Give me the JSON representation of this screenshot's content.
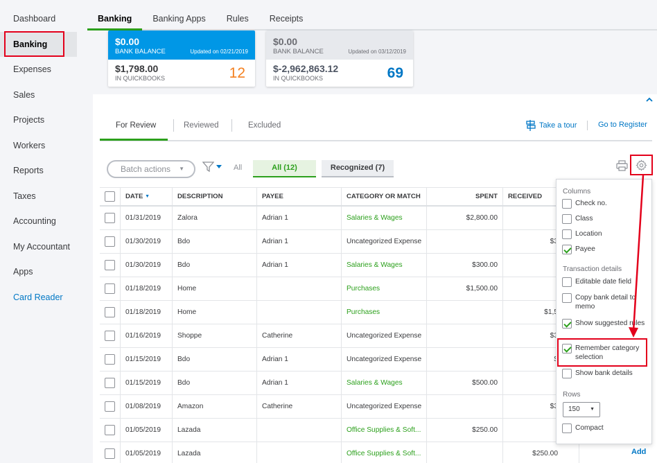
{
  "sidebar": {
    "items": [
      {
        "label": "Dashboard"
      },
      {
        "label": "Banking"
      },
      {
        "label": "Expenses"
      },
      {
        "label": "Sales"
      },
      {
        "label": "Projects"
      },
      {
        "label": "Workers"
      },
      {
        "label": "Reports"
      },
      {
        "label": "Taxes"
      },
      {
        "label": "Accounting"
      },
      {
        "label": "My Accountant"
      },
      {
        "label": "Apps"
      },
      {
        "label": "Card Reader"
      }
    ]
  },
  "top_tabs": [
    {
      "label": "Banking"
    },
    {
      "label": "Banking Apps"
    },
    {
      "label": "Rules"
    },
    {
      "label": "Receipts"
    }
  ],
  "cards": [
    {
      "bank_amount": "$0.00",
      "bank_label": "BANK BALANCE",
      "updated": "Updated on 02/21/2019",
      "qb_amount": "$1,798.00",
      "qb_label": "IN QUICKBOOKS",
      "count": "12"
    },
    {
      "bank_amount": "$0.00",
      "bank_label": "BANK BALANCE",
      "updated": "Updated on 03/12/2019",
      "qb_amount": "$-2,962,863.12",
      "qb_label": "IN QUICKBOOKS",
      "count": "69"
    }
  ],
  "review_tabs": {
    "for_review": "For Review",
    "reviewed": "Reviewed",
    "excluded": "Excluded"
  },
  "links": {
    "take_tour": "Take a tour",
    "go_register": "Go to Register",
    "add": "Add"
  },
  "toolbar": {
    "batch_actions": "Batch actions",
    "filter_all": "All",
    "all_pill": "All (12)",
    "recognized_pill": "Recognized (7)"
  },
  "table": {
    "headers": {
      "date": "DATE",
      "description": "DESCRIPTION",
      "payee": "PAYEE",
      "category": "CATEGORY OR MATCH",
      "spent": "SPENT",
      "received": "RECEIVED"
    },
    "rows": [
      {
        "date": "01/31/2019",
        "description": "Zalora",
        "payee": "Adrian 1",
        "category": "Salaries & Wages",
        "spent": "$2,800.00",
        "received": ""
      },
      {
        "date": "01/30/2019",
        "description": "Bdo",
        "payee": "Adrian 1",
        "category": "Uncategorized Expense",
        "spent": "",
        "received": "$3"
      },
      {
        "date": "01/30/2019",
        "description": "Bdo",
        "payee": "Adrian 1",
        "category": "Salaries & Wages",
        "spent": "$300.00",
        "received": ""
      },
      {
        "date": "01/18/2019",
        "description": "Home",
        "payee": "",
        "category": "Purchases",
        "spent": "$1,500.00",
        "received": ""
      },
      {
        "date": "01/18/2019",
        "description": "Home",
        "payee": "",
        "category": "Purchases",
        "spent": "",
        "received": "$1,5"
      },
      {
        "date": "01/16/2019",
        "description": "Shoppe",
        "payee": "Catherine",
        "category": "Uncategorized Expense",
        "spent": "",
        "received": "$3"
      },
      {
        "date": "01/15/2019",
        "description": "Bdo",
        "payee": "Adrian 1",
        "category": "Uncategorized Expense",
        "spent": "",
        "received": "$"
      },
      {
        "date": "01/15/2019",
        "description": "Bdo",
        "payee": "Adrian 1",
        "category": "Salaries & Wages",
        "spent": "$500.00",
        "received": ""
      },
      {
        "date": "01/08/2019",
        "description": "Amazon",
        "payee": "Catherine",
        "category": "Uncategorized Expense",
        "spent": "",
        "received": "$3"
      },
      {
        "date": "01/05/2019",
        "description": "Lazada",
        "payee": "",
        "category": "Office Supplies & Soft...",
        "spent": "$250.00",
        "received": ""
      },
      {
        "date": "01/05/2019",
        "description": "Lazada",
        "payee": "",
        "category": "Office Supplies & Soft...",
        "spent": "",
        "received": "$250.00"
      }
    ]
  },
  "settings": {
    "columns_title": "Columns",
    "columns": [
      {
        "label": "Check no.",
        "checked": false
      },
      {
        "label": "Class",
        "checked": false
      },
      {
        "label": "Location",
        "checked": false
      },
      {
        "label": "Payee",
        "checked": true
      }
    ],
    "transaction_title": "Transaction details",
    "transaction": [
      {
        "label": "Editable date field",
        "checked": false
      },
      {
        "label": "Copy bank detail to memo",
        "checked": false
      },
      {
        "label": "Show suggested rules",
        "checked": true
      },
      {
        "label": "Remember category selection",
        "checked": true
      },
      {
        "label": "Show bank details",
        "checked": false
      }
    ],
    "rows_title": "Rows",
    "rows_value": "150",
    "compact": {
      "label": "Compact",
      "checked": false
    }
  },
  "colors": {
    "accent_green": "#2ca01c",
    "link_blue": "#0077c5",
    "highlight_red": "#e3001b",
    "card_blue": "#0097e6",
    "count_orange": "#f48020"
  }
}
